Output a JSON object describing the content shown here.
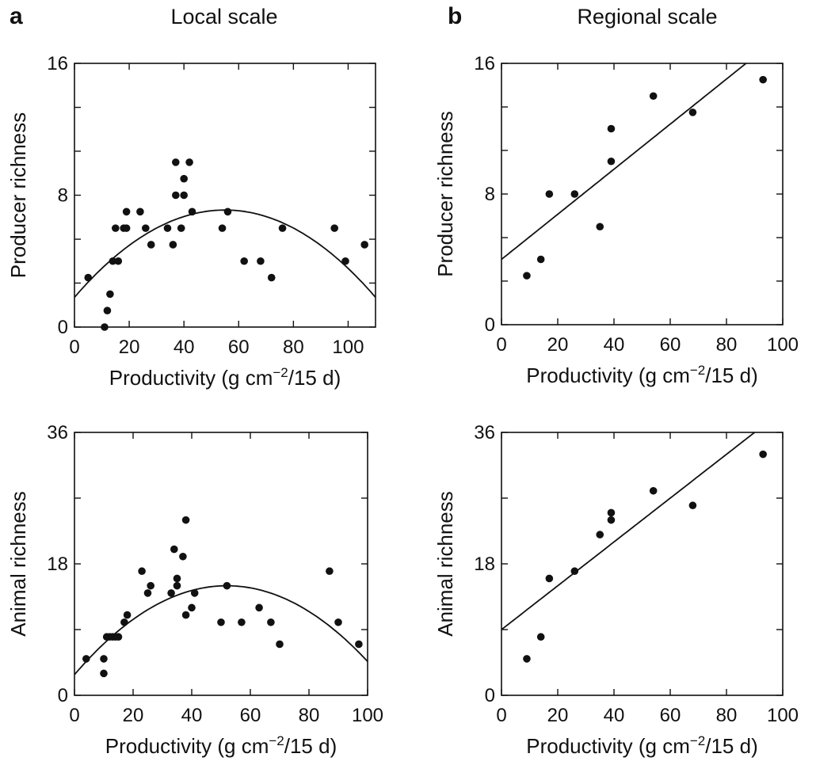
{
  "figure": {
    "panel_a": "a",
    "panel_b": "b",
    "title_a": "Local scale",
    "title_b": "Regional scale"
  },
  "chart_data": [
    {
      "id": "local-producer",
      "type": "scatter",
      "title": "Local scale",
      "xlabel": "Productivity (g cm",
      "xlabel_sup": "−2",
      "xlabel_tail": "/15 d)",
      "ylabel": "Producer richness",
      "xlim": [
        0,
        110
      ],
      "ylim": [
        0,
        16
      ],
      "xticks": [
        0,
        20,
        40,
        60,
        80,
        100
      ],
      "yticks_labeled": [
        0,
        8,
        16
      ],
      "yticks_minor": [
        2.67,
        5.33,
        10.67,
        13.33
      ],
      "points": [
        [
          5,
          3
        ],
        [
          11,
          0
        ],
        [
          12,
          1
        ],
        [
          13,
          2
        ],
        [
          14,
          4
        ],
        [
          15,
          6
        ],
        [
          16,
          4
        ],
        [
          18,
          6
        ],
        [
          19,
          7
        ],
        [
          19,
          6
        ],
        [
          24,
          7
        ],
        [
          26,
          6
        ],
        [
          28,
          5
        ],
        [
          34,
          6
        ],
        [
          36,
          5
        ],
        [
          37,
          10
        ],
        [
          37,
          8
        ],
        [
          39,
          6
        ],
        [
          40,
          9
        ],
        [
          40,
          8
        ],
        [
          42,
          10
        ],
        [
          43,
          7
        ],
        [
          54,
          6
        ],
        [
          56,
          7
        ],
        [
          62,
          4
        ],
        [
          68,
          4
        ],
        [
          72,
          3
        ],
        [
          76,
          6
        ],
        [
          95,
          6
        ],
        [
          99,
          4
        ],
        [
          106,
          5
        ]
      ],
      "fit": {
        "kind": "quadratic",
        "peak_x": 55,
        "peak_y": 7.1,
        "curvature": -0.00175
      }
    },
    {
      "id": "regional-producer",
      "type": "scatter",
      "title": "Regional scale",
      "xlabel": "Productivity (g cm",
      "xlabel_sup": "−2",
      "xlabel_tail": "/15 d)",
      "ylabel": "Producer richness",
      "xlim": [
        0,
        100
      ],
      "ylim": [
        0,
        16
      ],
      "xticks": [
        0,
        20,
        40,
        60,
        80,
        100
      ],
      "yticks_labeled": [
        0,
        8,
        16
      ],
      "yticks_minor": [
        2.67,
        5.33,
        10.67,
        13.33
      ],
      "points": [
        [
          9,
          3
        ],
        [
          14,
          4
        ],
        [
          17,
          8
        ],
        [
          26,
          8
        ],
        [
          35,
          6
        ],
        [
          39,
          12
        ],
        [
          39,
          10
        ],
        [
          54,
          14
        ],
        [
          68,
          13
        ],
        [
          93,
          15
        ]
      ],
      "fit": {
        "kind": "linear",
        "intercept": 4.0,
        "slope": 0.138
      }
    },
    {
      "id": "local-animal",
      "type": "scatter",
      "title": "",
      "xlabel": "Productivity (g cm",
      "xlabel_sup": "−2",
      "xlabel_tail": "/15 d)",
      "ylabel": "Animal richness",
      "xlim": [
        0,
        100
      ],
      "ylim": [
        0,
        36
      ],
      "xticks": [
        0,
        20,
        40,
        60,
        80,
        100
      ],
      "yticks_labeled": [
        0,
        18,
        36
      ],
      "yticks_minor": [
        9,
        27
      ],
      "points": [
        [
          4,
          5
        ],
        [
          10,
          5
        ],
        [
          10,
          3
        ],
        [
          11,
          8
        ],
        [
          12,
          8
        ],
        [
          13,
          8
        ],
        [
          14,
          8
        ],
        [
          15,
          8
        ],
        [
          17,
          10
        ],
        [
          18,
          11
        ],
        [
          23,
          17
        ],
        [
          25,
          14
        ],
        [
          26,
          15
        ],
        [
          33,
          14
        ],
        [
          34,
          20
        ],
        [
          35,
          15
        ],
        [
          35,
          16
        ],
        [
          37,
          19
        ],
        [
          38,
          24
        ],
        [
          38,
          11
        ],
        [
          40,
          12
        ],
        [
          41,
          14
        ],
        [
          50,
          10
        ],
        [
          52,
          15
        ],
        [
          57,
          10
        ],
        [
          63,
          12
        ],
        [
          67,
          10
        ],
        [
          70,
          7
        ],
        [
          87,
          17
        ],
        [
          90,
          10
        ],
        [
          97,
          7
        ]
      ],
      "fit": {
        "kind": "quadratic",
        "peak_x": 52,
        "peak_y": 15,
        "curvature": -0.0045
      }
    },
    {
      "id": "regional-animal",
      "type": "scatter",
      "title": "",
      "xlabel": "Productivity (g cm",
      "xlabel_sup": "−2",
      "xlabel_tail": "/15 d)",
      "ylabel": "Animal richness",
      "xlim": [
        0,
        100
      ],
      "ylim": [
        0,
        36
      ],
      "xticks": [
        0,
        20,
        40,
        60,
        80,
        100
      ],
      "yticks_labeled": [
        0,
        18,
        36
      ],
      "yticks_minor": [
        9,
        27
      ],
      "points": [
        [
          9,
          5
        ],
        [
          14,
          8
        ],
        [
          17,
          16
        ],
        [
          26,
          17
        ],
        [
          35,
          22
        ],
        [
          39,
          25
        ],
        [
          39,
          24
        ],
        [
          54,
          28
        ],
        [
          68,
          26
        ],
        [
          93,
          33
        ]
      ],
      "fit": {
        "kind": "linear",
        "intercept": 9.0,
        "slope": 0.3
      }
    }
  ]
}
